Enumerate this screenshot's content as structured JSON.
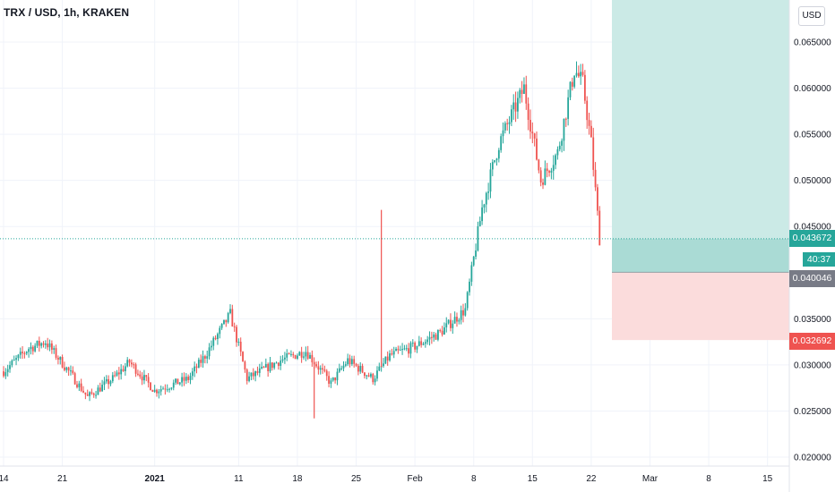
{
  "header": {
    "symbol_title": "TRX / USD, 1h, KRAKEN",
    "currency_button": "USD"
  },
  "price_tags": {
    "current": "0.043672",
    "countdown": "40:37",
    "entry": "0.040046",
    "stop": "0.032692"
  },
  "colors": {
    "bull": "#26a69a",
    "bear": "#ef5350",
    "profit_zone": "#cbeae6",
    "loss_zone": "#fbdcdc",
    "entry_tag": "#787b86",
    "grid": "#f0f3fa"
  },
  "chart_data": {
    "type": "candlestick",
    "y_axis": {
      "ticks": [
        "0.065000",
        "0.060000",
        "0.055000",
        "0.050000",
        "0.045000",
        "0.035000",
        "0.030000",
        "0.025000",
        "0.020000"
      ],
      "ylim": [
        0.0198,
        0.0695
      ]
    },
    "x_axis": {
      "ticks": [
        "14",
        "21",
        "2021",
        "11",
        "18",
        "25",
        "Feb",
        "8",
        "15",
        "22",
        "Mar",
        "8",
        "15"
      ]
    },
    "approx_close_path": [
      {
        "date": "2020-12-14",
        "close": 0.0293
      },
      {
        "date": "2020-12-17",
        "close": 0.0318
      },
      {
        "date": "2020-12-19",
        "close": 0.0325
      },
      {
        "date": "2020-12-22",
        "close": 0.029
      },
      {
        "date": "2020-12-24",
        "close": 0.0265
      },
      {
        "date": "2020-12-27",
        "close": 0.0285
      },
      {
        "date": "2020-12-29",
        "close": 0.0303
      },
      {
        "date": "2021-01-01",
        "close": 0.0272
      },
      {
        "date": "2021-01-05",
        "close": 0.0285
      },
      {
        "date": "2021-01-07",
        "close": 0.031
      },
      {
        "date": "2021-01-10",
        "close": 0.0355
      },
      {
        "date": "2021-01-12",
        "close": 0.0285
      },
      {
        "date": "2021-01-16",
        "close": 0.0305
      },
      {
        "date": "2021-01-19",
        "close": 0.0315
      },
      {
        "date": "2021-01-22",
        "close": 0.028
      },
      {
        "date": "2021-01-24",
        "close": 0.0305
      },
      {
        "date": "2021-01-27",
        "close": 0.0285
      },
      {
        "date": "2021-01-29",
        "close": 0.031
      },
      {
        "date": "2021-02-01",
        "close": 0.032
      },
      {
        "date": "2021-02-04",
        "close": 0.0335
      },
      {
        "date": "2021-02-07",
        "close": 0.036
      },
      {
        "date": "2021-02-09",
        "close": 0.047
      },
      {
        "date": "2021-02-11",
        "close": 0.054
      },
      {
        "date": "2021-02-14",
        "close": 0.06
      },
      {
        "date": "2021-02-16",
        "close": 0.05
      },
      {
        "date": "2021-02-18",
        "close": 0.053
      },
      {
        "date": "2021-02-20",
        "close": 0.062
      },
      {
        "date": "2021-02-21",
        "close": 0.0605
      },
      {
        "date": "2021-02-22",
        "close": 0.054
      },
      {
        "date": "2021-02-23",
        "close": 0.0437
      }
    ],
    "spikes": [
      {
        "date": "2021-01-28",
        "high": 0.0468
      },
      {
        "date": "2021-01-20",
        "low": 0.0242
      }
    ],
    "position": {
      "entry": 0.040046,
      "stop": 0.032692,
      "target_top": 0.0695
    },
    "current_price": 0.043672
  }
}
